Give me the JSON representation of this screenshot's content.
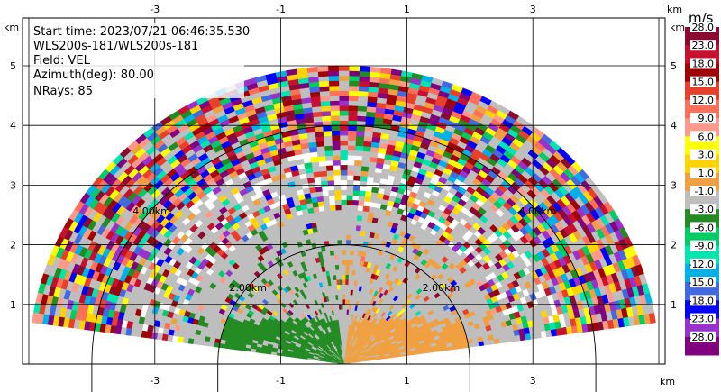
{
  "info_lines": [
    "Start time: 2023/07/21 06:46:35.530",
    "WLS200s-181/WLS200s-181",
    "Field: VEL",
    "Azimuth(deg): 80.00",
    "NRays: 85"
  ],
  "axis_unit": "km",
  "colorbar_unit": "m/s",
  "chart_data": {
    "type": "heatmap",
    "subtype": "rhi-scan",
    "field": "VEL",
    "azimuth_deg": 80.0,
    "n_rays": 85,
    "xlim": [
      -5.1,
      5.1
    ],
    "ylim": [
      0,
      5.8
    ],
    "x_ticks": [
      -3,
      -1,
      1,
      3
    ],
    "y_ticks": [
      1,
      2,
      3,
      4,
      5
    ],
    "x_unit": "km",
    "y_unit": "km",
    "max_range_km": 5.0,
    "range_rings_km": [
      2,
      4
    ],
    "range_ring_labels": [
      "2.00km",
      "4.00km"
    ],
    "colorbar": {
      "unit": "m/s",
      "levels": [
        28.0,
        23.0,
        18.0,
        15.0,
        12.0,
        9.0,
        6.0,
        3.0,
        1.0,
        -1.0,
        -3.0,
        -6.0,
        -9.0,
        -12.0,
        -15.0,
        -18.0,
        -23.0,
        -28.0
      ],
      "labels": [
        "28.0",
        "23.0",
        "18.0",
        "15.0",
        "12.0",
        "9.0",
        "6.0",
        "3.0",
        "1.0",
        "-1.0",
        "-3.0",
        "-6.0",
        "-9.0",
        "-12.0",
        "-15.0",
        "-18.0",
        "-23.0",
        "-28.0"
      ],
      "colors": [
        "#8b0a2f",
        "#c8102e",
        "#a00000",
        "#e8402a",
        "#ff6f5a",
        "#ff9a8a",
        "#ffff00",
        "#ffd400",
        "#f0a040",
        "#bebebe",
        "#228b22",
        "#00cc66",
        "#00e5b0",
        "#00b0e8",
        "#4169e1",
        "#0000ff",
        "#9932cc",
        "#800080"
      ]
    },
    "regions": {
      "near_left_color": "#228b22",
      "near_right_color": "#f0a040",
      "mid_color": "#bebebe"
    }
  }
}
